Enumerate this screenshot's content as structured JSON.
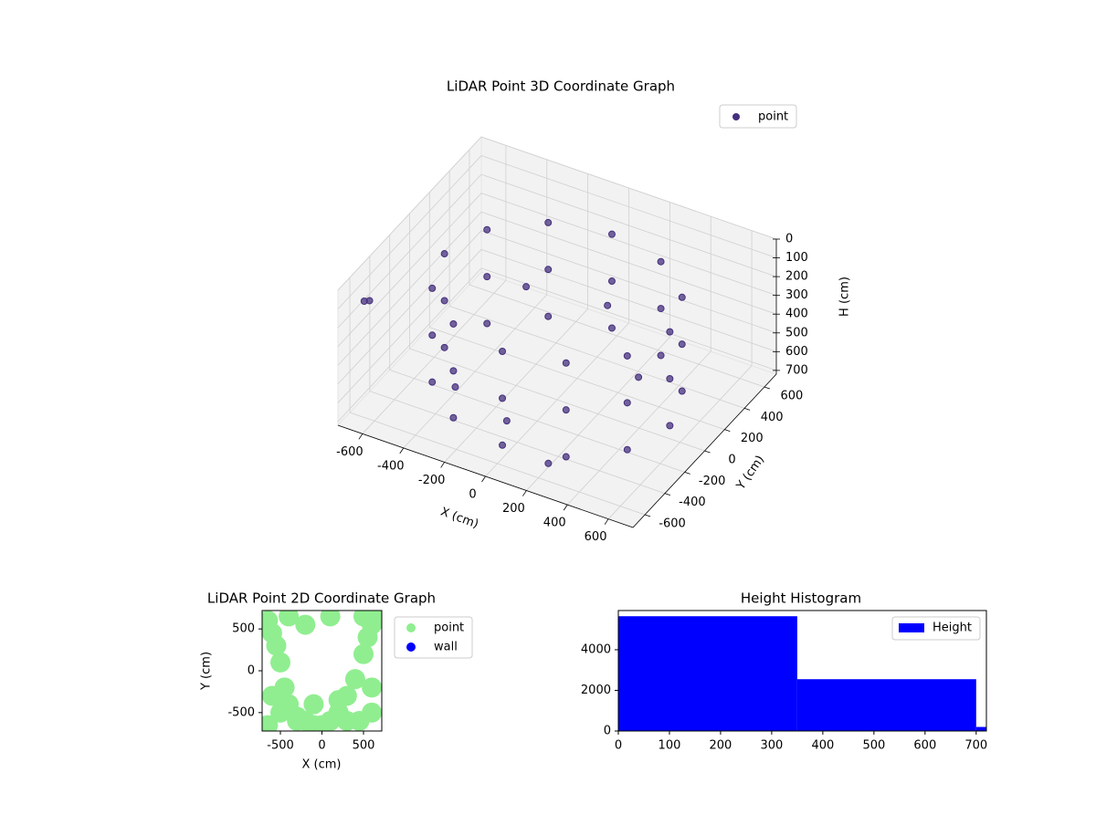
{
  "chart_data": [
    {
      "type": "scatter3d",
      "title": "LiDAR Point 3D Coordinate Graph",
      "x_label": "X (cm)",
      "y_label": "Y (cm)",
      "z_label": "H (cm)",
      "series": [
        {
          "name": "point",
          "color": "#46307e",
          "x": [
            550,
            476,
            275,
            0,
            -275,
            -476,
            -550,
            -476,
            -275,
            0,
            275,
            476,
            550,
            476,
            275,
            0,
            -275,
            -476,
            -550,
            -476,
            -275,
            0,
            275,
            476,
            550,
            476,
            275,
            0,
            -275,
            -476,
            -550,
            -476,
            -275,
            0,
            275,
            476,
            -100,
            200,
            -400,
            300,
            -200,
            100,
            -650,
            -600
          ],
          "y": [
            0,
            275,
            476,
            550,
            476,
            275,
            0,
            -275,
            -476,
            -550,
            -476,
            -275,
            0,
            275,
            476,
            550,
            476,
            275,
            0,
            -275,
            -476,
            -550,
            -476,
            -275,
            0,
            275,
            476,
            550,
            476,
            275,
            0,
            -275,
            -476,
            -550,
            -476,
            -275,
            -300,
            -500,
            -200,
            200,
            100,
            300,
            -600,
            -650
          ],
          "h": [
            150,
            150,
            150,
            150,
            150,
            150,
            150,
            150,
            150,
            150,
            150,
            150,
            400,
            400,
            400,
            400,
            400,
            400,
            400,
            400,
            400,
            400,
            400,
            400,
            650,
            650,
            650,
            650,
            650,
            650,
            650,
            650,
            650,
            650,
            650,
            650,
            700,
            700,
            690,
            600,
            250,
            350,
            100,
            50
          ]
        }
      ],
      "xlim": [
        -720,
        720
      ],
      "ylim": [
        -720,
        720
      ],
      "zlim": [
        0,
        720
      ],
      "z_inverted": true,
      "xticks": [
        -600,
        -400,
        -200,
        0,
        200,
        400,
        600
      ],
      "yticks": [
        -600,
        -400,
        -200,
        0,
        200,
        400,
        600
      ],
      "zticks": [
        0,
        100,
        200,
        300,
        400,
        500,
        600,
        700
      ],
      "grid": true,
      "legend": "upper right"
    },
    {
      "type": "scatter",
      "title": "LiDAR Point 2D Coordinate Graph",
      "x_label": "X (cm)",
      "y_label": "Y (cm)",
      "series": [
        {
          "name": "point",
          "color": "#90ee90",
          "x": [
            -650,
            -600,
            -550,
            -500,
            -450,
            -400,
            -300,
            -200,
            -100,
            100,
            200,
            300,
            400,
            500,
            550,
            600,
            650,
            -650,
            -600,
            -500,
            -300,
            -100,
            0,
            200,
            300,
            450,
            600,
            -200,
            -400,
            500,
            600,
            100
          ],
          "y": [
            600,
            450,
            300,
            100,
            -200,
            -400,
            -550,
            -600,
            -650,
            -600,
            -500,
            -300,
            -100,
            200,
            400,
            550,
            650,
            -650,
            -300,
            -500,
            -600,
            -400,
            -650,
            -350,
            -600,
            -600,
            -200,
            550,
            650,
            650,
            -500,
            650
          ]
        },
        {
          "name": "wall",
          "color": "#0000ff",
          "x": [],
          "y": []
        }
      ],
      "xlim": [
        -720,
        720
      ],
      "ylim": [
        -720,
        720
      ],
      "xticks": [
        -500,
        0,
        500
      ],
      "yticks": [
        -500,
        0,
        500
      ],
      "legend": "outside right"
    },
    {
      "type": "histogram",
      "title": "Height Histogram",
      "bins": [
        0,
        350,
        700,
        720
      ],
      "counts": [
        5650,
        2550,
        200
      ],
      "series_name": "Height",
      "color": "#0000ff",
      "xlim": [
        0,
        720
      ],
      "ylim": [
        0,
        5930
      ],
      "xticks": [
        0,
        100,
        200,
        300,
        400,
        500,
        600,
        700
      ],
      "yticks": [
        0,
        2000,
        4000
      ],
      "legend": "upper right"
    }
  ]
}
